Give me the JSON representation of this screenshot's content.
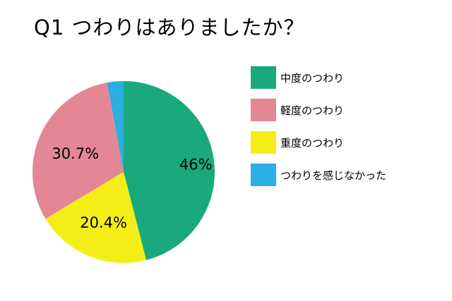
{
  "title": "Q1 つわりはありましたか？",
  "chart_data": {
    "type": "pie",
    "title": "Q1 つわりはありましたか？",
    "slices": [
      {
        "label": "中度のつわり",
        "value": 46,
        "display": "46%",
        "color": "#1aa97c"
      },
      {
        "label": "重度のつわり",
        "value": 20.4,
        "display": "20.4%",
        "color": "#f5ee16"
      },
      {
        "label": "軽度のつわり",
        "value": 30.7,
        "display": "30.7%",
        "color": "#e48795"
      },
      {
        "label": "つわりを感じなかった",
        "value": 2.9,
        "display": "",
        "color": "#2aaee3"
      }
    ],
    "legend": {
      "placement": "right",
      "items": [
        {
          "label": "中度のつわり",
          "color": "#1aa97c"
        },
        {
          "label": "軽度のつわり",
          "color": "#e48795"
        },
        {
          "label": "重度のつわり",
          "color": "#f5ee16"
        },
        {
          "label": "つわりを感じなかった",
          "color": "#2aaee3"
        }
      ]
    }
  }
}
